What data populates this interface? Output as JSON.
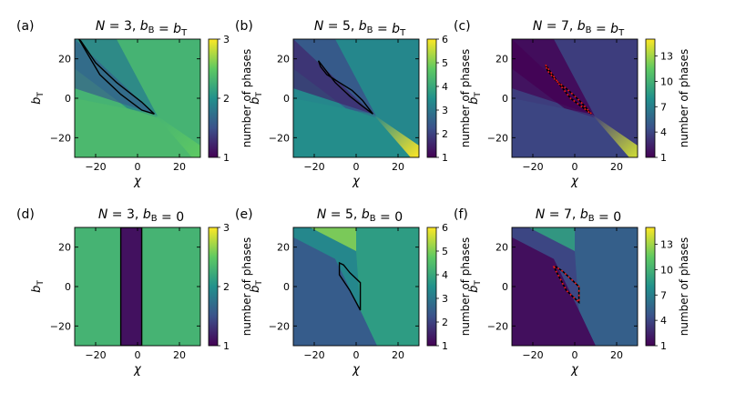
{
  "figure": {
    "colormap": [
      "#440154",
      "#3b528b",
      "#21918c",
      "#5ec962",
      "#fde725"
    ],
    "colorbar_label": "number of phases",
    "xlabel": "χ",
    "ylabel": "bT",
    "x_range": [
      -30,
      30
    ],
    "y_range": [
      -30,
      30
    ],
    "x_ticks": [
      -20,
      0,
      20
    ],
    "y_ticks": [
      -20,
      0,
      20
    ]
  },
  "chart_data": [
    {
      "type": "heatmap",
      "label": "(a)",
      "title": "N = 3, bB = bT",
      "N": 3,
      "case": "bB=bT",
      "colorbar": {
        "min": 1,
        "max": 3,
        "ticks": [
          1,
          2,
          3
        ]
      },
      "background_value": 2.3,
      "boundary": [
        [
          -28,
          30
        ],
        [
          -18,
          12
        ],
        [
          -8,
          2
        ],
        [
          2,
          -6
        ],
        [
          8,
          -8
        ],
        [
          2,
          -2
        ],
        [
          -10,
          8
        ],
        [
          -20,
          18
        ],
        [
          -27,
          29
        ]
      ],
      "boundary_style": "solid",
      "streak": {
        "from": [
          8,
          -8
        ],
        "to": [
          30,
          -30
        ],
        "value": 2.5
      }
    },
    {
      "type": "heatmap",
      "label": "(b)",
      "title": "N = 5, bB = bT",
      "N": 5,
      "case": "bB=bT",
      "colorbar": {
        "min": 1,
        "max": 6,
        "ticks": [
          1,
          2,
          3,
          4,
          5,
          6
        ]
      },
      "background_value": 3.3,
      "boundary": [
        [
          -18,
          19
        ],
        [
          -10,
          8
        ],
        [
          -3,
          1
        ],
        [
          3,
          -4
        ],
        [
          8,
          -8
        ],
        [
          3,
          -1
        ],
        [
          -2,
          4
        ],
        [
          -8,
          8
        ],
        [
          -14,
          12
        ],
        [
          -17,
          16
        ]
      ],
      "boundary_style": "solid",
      "streak": {
        "from": [
          8,
          -8
        ],
        "to": [
          30,
          -30
        ],
        "value": 6
      }
    },
    {
      "type": "heatmap",
      "label": "(c)",
      "title": "N = 7, bB = bT",
      "N": 7,
      "case": "bB=bT",
      "colorbar": {
        "min": 1,
        "max": 15,
        "ticks": [
          1,
          4,
          7,
          10,
          13
        ]
      },
      "background_value": 3.6,
      "boundary": [
        [
          -14,
          17
        ],
        [
          -8,
          8
        ],
        [
          -2,
          0
        ],
        [
          3,
          -4
        ],
        [
          8,
          -8
        ],
        [
          3,
          -2
        ],
        [
          -3,
          4
        ],
        [
          -9,
          9
        ],
        [
          -13,
          14
        ]
      ],
      "boundary_style": "dotted",
      "streak": {
        "from": [
          8,
          -8
        ],
        "to": [
          30,
          -30
        ],
        "value": 14
      }
    },
    {
      "type": "heatmap",
      "label": "(d)",
      "title": "N = 3, bB = 0",
      "N": 3,
      "case": "bB=0",
      "colorbar": {
        "min": 1,
        "max": 3,
        "ticks": [
          1,
          2,
          3
        ]
      },
      "background_value": 2.3,
      "band": {
        "x_from": -8,
        "x_to": 2,
        "value": 1.1
      },
      "boundary": [
        [
          -8,
          30
        ],
        [
          -8,
          -30
        ],
        [
          2,
          -30
        ],
        [
          2,
          30
        ]
      ],
      "boundary_style": "solid"
    },
    {
      "type": "heatmap",
      "label": "(e)",
      "title": "N = 5, bB = 0",
      "N": 5,
      "case": "bB=0",
      "colorbar": {
        "min": 1,
        "max": 6,
        "ticks": [
          1,
          2,
          3,
          4,
          5,
          6
        ]
      },
      "background_value": 3.3,
      "boundary": [
        [
          -8,
          12
        ],
        [
          -8,
          6
        ],
        [
          -3,
          -2
        ],
        [
          2,
          -12
        ],
        [
          2,
          2
        ],
        [
          -3,
          7
        ],
        [
          -6,
          11
        ]
      ],
      "boundary_style": "solid"
    },
    {
      "type": "heatmap",
      "label": "(f)",
      "title": "N = 7, bB = 0",
      "N": 7,
      "case": "bB=0",
      "colorbar": {
        "min": 1,
        "max": 15,
        "ticks": [
          1,
          4,
          7,
          10,
          13
        ]
      },
      "background_value": 4,
      "boundary": [
        [
          -10,
          10
        ],
        [
          -7,
          4
        ],
        [
          -4,
          -2
        ],
        [
          0,
          -6
        ],
        [
          2,
          -8
        ],
        [
          2,
          0
        ],
        [
          -2,
          4
        ],
        [
          -6,
          8
        ],
        [
          -9,
          10
        ]
      ],
      "boundary_style": "dotted"
    }
  ]
}
